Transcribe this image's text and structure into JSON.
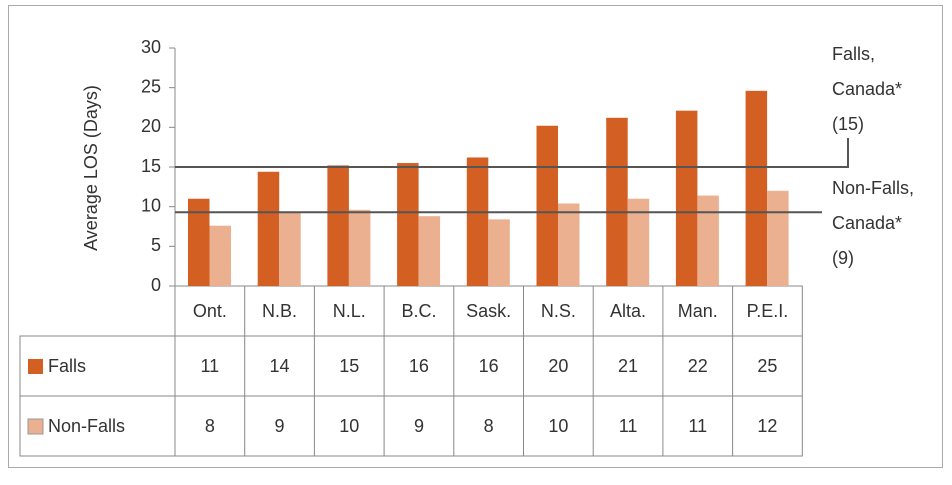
{
  "chart_data": {
    "type": "bar",
    "y_label": "Average LOS (Days)",
    "categories": [
      "Ont.",
      "N.B.",
      "N.L.",
      "B.C.",
      "Sask.",
      "N.S.",
      "Alta.",
      "Man.",
      "P.E.I."
    ],
    "series": [
      {
        "name": "Falls",
        "color": "#d35f22",
        "values": [
          11,
          14.4,
          15.2,
          15.5,
          16.2,
          20.2,
          21.2,
          22.1,
          24.6
        ],
        "value_labels": [
          "11",
          "14",
          "15",
          "16",
          "16",
          "20",
          "21",
          "22",
          "25"
        ]
      },
      {
        "name": "Non-Falls",
        "color": "#eab08f",
        "values": [
          7.6,
          9.2,
          9.6,
          8.8,
          8.4,
          10.4,
          11,
          11.4,
          12
        ],
        "value_labels": [
          "8",
          "9",
          "10",
          "9",
          "8",
          "10",
          "11",
          "11",
          "12"
        ]
      }
    ],
    "reference_lines": [
      {
        "text": [
          "Falls,",
          "Canada*"
        ],
        "value": 15,
        "value_label": "(15)"
      },
      {
        "text": [
          "Non-Falls,",
          "Canada*"
        ],
        "value": 9.3,
        "value_label": "(9)"
      }
    ],
    "ylim": [
      0,
      30
    ],
    "yticks": [
      0,
      5,
      10,
      15,
      20,
      25,
      30
    ],
    "grid": false
  }
}
